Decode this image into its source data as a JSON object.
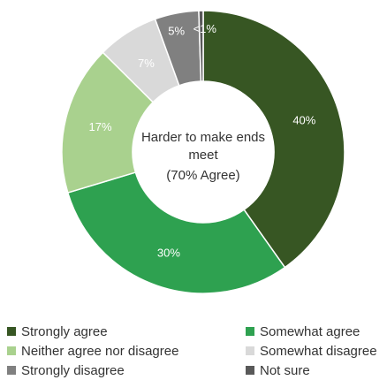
{
  "chart_data": {
    "type": "pie",
    "subtype": "donut",
    "center_label": [
      "Harder to make ends",
      "meet",
      "(70% Agree)"
    ],
    "slices": [
      {
        "name": "Strongly agree",
        "value": 40,
        "label": "40%",
        "color": "#375623"
      },
      {
        "name": "Somewhat agree",
        "value": 30,
        "label": "30%",
        "color": "#2EA150"
      },
      {
        "name": "Neither agree nor disagree",
        "value": 17,
        "label": "17%",
        "color": "#A9D18E"
      },
      {
        "name": "Somewhat disagree",
        "value": 7,
        "label": "7%",
        "color": "#D9D9D9"
      },
      {
        "name": "Strongly disagree",
        "value": 5,
        "label": "5%",
        "color": "#808080"
      },
      {
        "name": "Not sure",
        "value": 0.5,
        "label": "<1%",
        "color": "#595959"
      }
    ],
    "legend": {
      "placement": "bottom",
      "items": [
        {
          "label": "Strongly agree",
          "color": "#375623"
        },
        {
          "label": "Somewhat agree",
          "color": "#2EA150"
        },
        {
          "label": "Neither agree nor disagree",
          "color": "#A9D18E"
        },
        {
          "label": "Somewhat disagree",
          "color": "#D9D9D9"
        },
        {
          "label": "Strongly disagree",
          "color": "#808080"
        },
        {
          "label": "Not sure",
          "color": "#595959"
        }
      ]
    }
  }
}
